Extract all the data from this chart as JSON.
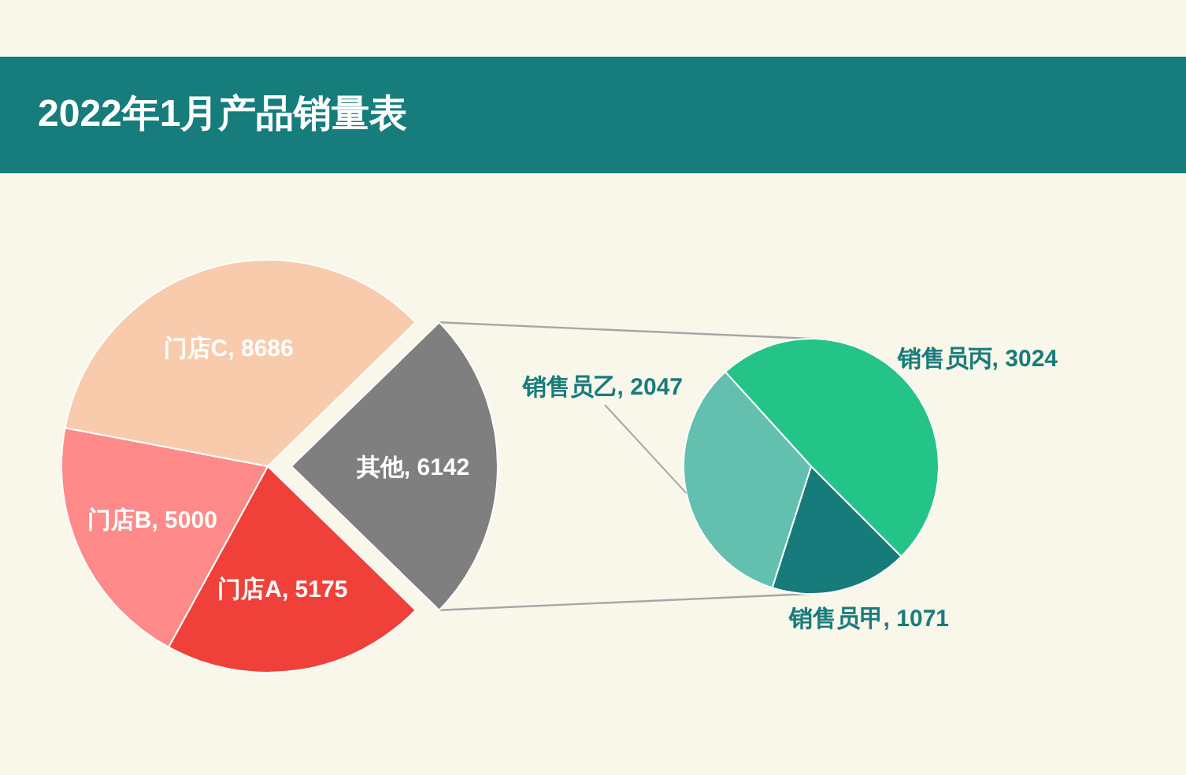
{
  "chart_data": [
    {
      "type": "pie",
      "title": "2022年1月产品销量表",
      "categories": [
        "门店A",
        "门店B",
        "门店C",
        "其他"
      ],
      "values": [
        5175,
        5000,
        8686,
        6142
      ],
      "value_labels": [
        ", 5175",
        ", 5000",
        ", 8686",
        ", 6142"
      ],
      "colors": [
        "#f0403a",
        "#ff8a8a",
        "#f8cbad",
        "#7f7f7f"
      ]
    },
    {
      "type": "pie",
      "categories": [
        "销售员甲",
        "销售员乙",
        "销售员丙"
      ],
      "values": [
        1071,
        2047,
        3024
      ],
      "value_labels": [
        ", 1071",
        ", 2047",
        ", 3024"
      ],
      "colors": [
        "#177b7c",
        "#63bfae",
        "#24c387"
      ]
    }
  ]
}
